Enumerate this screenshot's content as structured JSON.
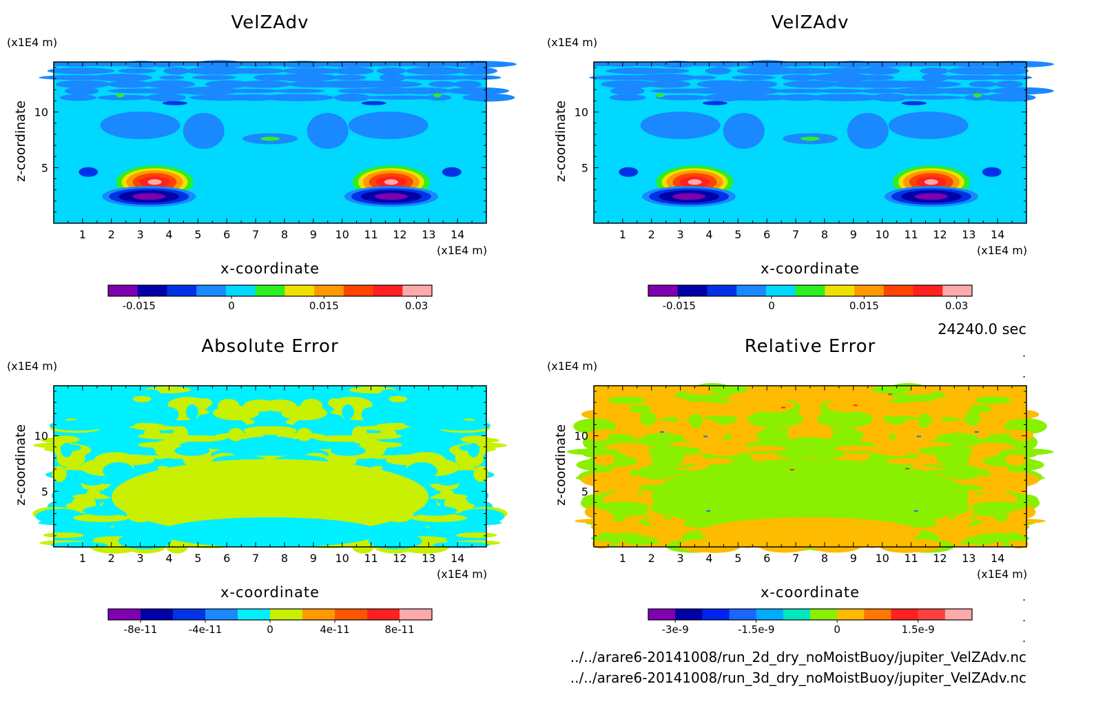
{
  "chart_data": [
    {
      "type": "heatmap",
      "title": "VelZAdv",
      "xlabel": "x-coordinate",
      "ylabel": "z-coordinate",
      "x_unit": "(x1E4 m)",
      "y_unit": "(x1E4 m)",
      "xlim": [
        0,
        15
      ],
      "ylim": [
        0,
        14.5
      ],
      "x_ticks": [
        "1",
        "2",
        "3",
        "4",
        "5",
        "6",
        "7",
        "8",
        "9",
        "10",
        "11",
        "12",
        "13",
        "14"
      ],
      "y_ticks": [
        "5",
        "10"
      ],
      "colorbar": {
        "colors": [
          "#7f00b0",
          "#0000a8",
          "#0033e6",
          "#1a88ff",
          "#00d8ff",
          "#2cf020",
          "#f0e000",
          "#ff9900",
          "#ff4400",
          "#ff2020",
          "#ffaaaa"
        ],
        "tick_labels": [
          "-0.015",
          "0",
          "0.015",
          "0.03"
        ],
        "tick_values": [
          -0.015,
          0,
          0.015,
          0.03
        ],
        "range": [
          -0.02,
          0.0325
        ]
      },
      "features": [
        {
          "kind": "positive_max",
          "x": 3.5,
          "z": 3.7,
          "value": 0.03
        },
        {
          "kind": "positive_max",
          "x": 11.7,
          "z": 3.7,
          "value": 0.03
        },
        {
          "kind": "negative_min",
          "x": 3.3,
          "z": 2.4,
          "value": -0.02
        },
        {
          "kind": "negative_min",
          "x": 11.7,
          "z": 2.4,
          "value": -0.02
        }
      ]
    },
    {
      "type": "heatmap",
      "title": "VelZAdv",
      "xlabel": "x-coordinate",
      "ylabel": "z-coordinate",
      "x_unit": "(x1E4 m)",
      "y_unit": "(x1E4 m)",
      "xlim": [
        0,
        15
      ],
      "ylim": [
        0,
        14.5
      ],
      "x_ticks": [
        "1",
        "2",
        "3",
        "4",
        "5",
        "6",
        "7",
        "8",
        "9",
        "10",
        "11",
        "12",
        "13",
        "14"
      ],
      "y_ticks": [
        "5",
        "10"
      ],
      "colorbar": {
        "colors": [
          "#7f00b0",
          "#0000a8",
          "#0033e6",
          "#1a88ff",
          "#00d8ff",
          "#2cf020",
          "#f0e000",
          "#ff9900",
          "#ff4400",
          "#ff2020",
          "#ffaaaa"
        ],
        "tick_labels": [
          "-0.015",
          "0",
          "0.015",
          "0.03"
        ],
        "tick_values": [
          -0.015,
          0,
          0.015,
          0.03
        ],
        "range": [
          -0.02,
          0.0325
        ]
      },
      "features": [
        {
          "kind": "positive_max",
          "x": 3.5,
          "z": 3.7,
          "value": 0.03
        },
        {
          "kind": "positive_max",
          "x": 11.7,
          "z": 3.7,
          "value": 0.03
        },
        {
          "kind": "negative_min",
          "x": 3.3,
          "z": 2.4,
          "value": -0.02
        },
        {
          "kind": "negative_min",
          "x": 11.7,
          "z": 2.4,
          "value": -0.02
        }
      ]
    },
    {
      "type": "heatmap",
      "title": "Absolute Error",
      "xlabel": "x-coordinate",
      "ylabel": "z-coordinate",
      "x_unit": "(x1E4 m)",
      "y_unit": "(x1E4 m)",
      "xlim": [
        0,
        15
      ],
      "ylim": [
        0,
        14.5
      ],
      "x_ticks": [
        "1",
        "2",
        "3",
        "4",
        "5",
        "6",
        "7",
        "8",
        "9",
        "10",
        "11",
        "12",
        "13",
        "14"
      ],
      "y_ticks": [
        "5",
        "10"
      ],
      "colorbar": {
        "colors": [
          "#7f00b0",
          "#0000a8",
          "#0033e6",
          "#1a88ff",
          "#00f0ff",
          "#c8f000",
          "#ff9900",
          "#ff5500",
          "#ff2020",
          "#ffaaaa"
        ],
        "tick_labels": [
          "-8e-11",
          "-4e-11",
          "0",
          "4e-11",
          "8e-11"
        ],
        "tick_values": [
          -8e-11,
          -4e-11,
          0,
          4e-11,
          8e-11
        ],
        "range": [
          -1e-10,
          1e-10
        ]
      },
      "dominant_values": [
        "0 (cyan)",
        "small positive (yellow-green)"
      ]
    },
    {
      "type": "heatmap",
      "title": "Relative Error",
      "xlabel": "x-coordinate",
      "ylabel": "z-coordinate",
      "x_unit": "(x1E4 m)",
      "y_unit": "(x1E4 m)",
      "xlim": [
        0,
        15
      ],
      "ylim": [
        0,
        14.5
      ],
      "x_ticks": [
        "1",
        "2",
        "3",
        "4",
        "5",
        "6",
        "7",
        "8",
        "9",
        "10",
        "11",
        "12",
        "13",
        "14"
      ],
      "y_ticks": [
        "5",
        "10"
      ],
      "colorbar": {
        "colors": [
          "#7f00b0",
          "#0000a8",
          "#0022ee",
          "#1a66ff",
          "#00aaff",
          "#00e8c0",
          "#88f000",
          "#ffbb00",
          "#ff7700",
          "#ff2020",
          "#ff4040",
          "#ffaaaa"
        ],
        "tick_labels": [
          "-3e-9",
          "-1.5e-9",
          "0",
          "1.5e-9"
        ],
        "tick_values": [
          -3e-09,
          -1.5e-09,
          0,
          1.5e-09
        ],
        "range": [
          -3.5e-09,
          2.5e-09
        ]
      },
      "dominant_values": [
        "small positive (orange)",
        "0 (yellow-green)"
      ]
    }
  ],
  "time_label": "24240.0 sec",
  "file_paths": [
    "../../arare6-20141008/run_2d_dry_noMoistBuoy/jupiter_VelZAdv.nc",
    "../../arare6-20141008/run_3d_dry_noMoistBuoy/jupiter_VelZAdv.nc"
  ]
}
